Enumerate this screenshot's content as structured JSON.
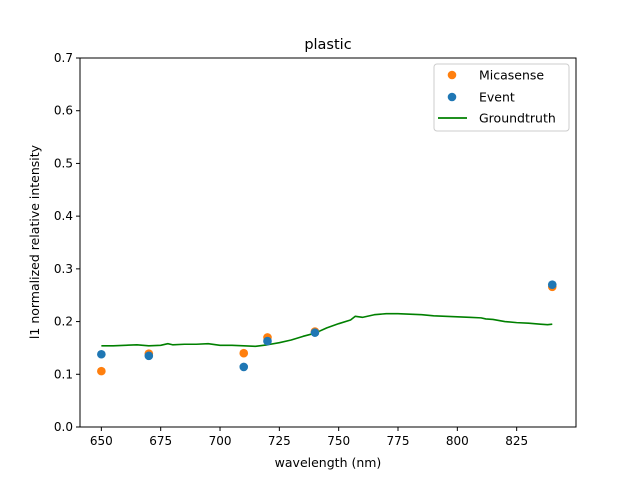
{
  "chart_data": {
    "type": "scatter",
    "title": "plastic",
    "xlabel": "wavelength (nm)",
    "ylabel": "l1 normalized relative intensity",
    "xlim": [
      641,
      850
    ],
    "ylim": [
      0.0,
      0.7
    ],
    "xticks": [
      650,
      675,
      700,
      725,
      750,
      775,
      800,
      825
    ],
    "yticks": [
      0.0,
      0.1,
      0.2,
      0.3,
      0.4,
      0.5,
      0.6,
      0.7
    ],
    "xtick_labels": [
      "650",
      "675",
      "700",
      "725",
      "750",
      "775",
      "800",
      "825"
    ],
    "ytick_labels": [
      "0.0",
      "0.1",
      "0.2",
      "0.3",
      "0.4",
      "0.5",
      "0.6",
      "0.7"
    ],
    "grid": false,
    "legend_position": "top-right",
    "series": [
      {
        "name": "Micasense",
        "kind": "scatter",
        "color": "#ff7f0e",
        "x": [
          650,
          670,
          710,
          720,
          740,
          840
        ],
        "y": [
          0.106,
          0.139,
          0.14,
          0.17,
          0.181,
          0.266
        ]
      },
      {
        "name": "Event",
        "kind": "scatter",
        "color": "#1f77b4",
        "x": [
          650,
          670,
          710,
          720,
          740,
          840
        ],
        "y": [
          0.138,
          0.135,
          0.114,
          0.163,
          0.179,
          0.27
        ]
      },
      {
        "name": "Groundtruth",
        "kind": "line",
        "color": "#008000",
        "x": [
          650,
          655,
          660,
          665,
          670,
          675,
          678,
          680,
          685,
          690,
          695,
          700,
          705,
          710,
          715,
          720,
          725,
          730,
          735,
          740,
          745,
          750,
          755,
          757,
          760,
          765,
          770,
          775,
          780,
          785,
          790,
          795,
          800,
          805,
          810,
          812,
          815,
          820,
          825,
          830,
          835,
          838,
          840
        ],
        "y": [
          0.154,
          0.154,
          0.155,
          0.156,
          0.154,
          0.155,
          0.158,
          0.156,
          0.157,
          0.157,
          0.158,
          0.155,
          0.155,
          0.154,
          0.153,
          0.156,
          0.16,
          0.165,
          0.172,
          0.178,
          0.188,
          0.196,
          0.203,
          0.21,
          0.208,
          0.213,
          0.215,
          0.215,
          0.214,
          0.213,
          0.211,
          0.21,
          0.209,
          0.208,
          0.207,
          0.205,
          0.204,
          0.2,
          0.198,
          0.197,
          0.195,
          0.194,
          0.195
        ]
      }
    ]
  }
}
